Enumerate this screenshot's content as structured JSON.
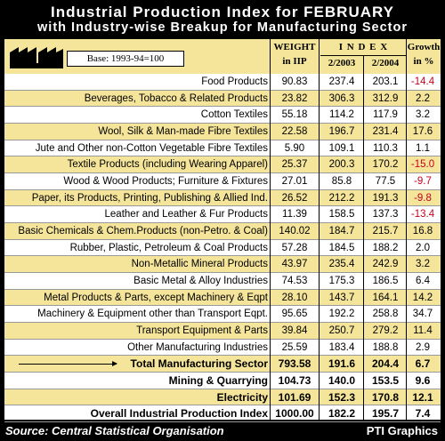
{
  "title_line1": "Industrial Production Index for FEBRUARY",
  "title_line2": "with Industry-wise Breakup for Manufacturing Sector",
  "base_label": "Base: 1993-94=100",
  "headers": {
    "weight_line1": "WEIGHT",
    "weight_line2": "in IIP",
    "index": "I N D E X",
    "year1": "2/2003",
    "year2": "2/2004",
    "growth_line1": "Growth",
    "growth_line2": "in %"
  },
  "chart_data": {
    "type": "table",
    "columns": [
      "Industry",
      "WEIGHT in IIP",
      "2/2003",
      "2/2004",
      "Growth in %"
    ],
    "rows": [
      {
        "name": "Food Products",
        "weight": "90.83",
        "y2003": "237.4",
        "y2004": "203.1",
        "growth": "-14.4"
      },
      {
        "name": "Beverages, Tobacco & Related Products",
        "weight": "23.82",
        "y2003": "306.3",
        "y2004": "312.9",
        "growth": "2.2"
      },
      {
        "name": "Cotton Textiles",
        "weight": "55.18",
        "y2003": "114.2",
        "y2004": "117.9",
        "growth": "3.2"
      },
      {
        "name": "Wool, Silk & Man-made Fibre Textiles",
        "weight": "22.58",
        "y2003": "196.7",
        "y2004": "231.4",
        "growth": "17.6"
      },
      {
        "name": "Jute and Other non-Cotton Vegetable Fibre Textiles",
        "weight": "5.90",
        "y2003": "109.1",
        "y2004": "110.3",
        "growth": "1.1"
      },
      {
        "name": "Textile Products (including Wearing Apparel)",
        "weight": "25.37",
        "y2003": "200.3",
        "y2004": "170.2",
        "growth": "-15.0"
      },
      {
        "name": "Wood & Wood Products; Furniture & Fixtures",
        "weight": "27.01",
        "y2003": "85.8",
        "y2004": "77.5",
        "growth": "-9.7"
      },
      {
        "name": "Paper, its Products, Printing, Publishing & Allied Ind.",
        "weight": "26.52",
        "y2003": "212.2",
        "y2004": "191.3",
        "growth": "-9.8"
      },
      {
        "name": "Leather and Leather & Fur Products",
        "weight": "11.39",
        "y2003": "158.5",
        "y2004": "137.3",
        "growth": "-13.4"
      },
      {
        "name": "Basic Chemicals & Chem.Products (non-Petro. & Coal)",
        "weight": "140.02",
        "y2003": "184.7",
        "y2004": "215.7",
        "growth": "16.8"
      },
      {
        "name": "Rubber, Plastic, Petroleum & Coal Products",
        "weight": "57.28",
        "y2003": "184.5",
        "y2004": "188.2",
        "growth": "2.0"
      },
      {
        "name": "Non-Metallic Mineral Products",
        "weight": "43.97",
        "y2003": "235.4",
        "y2004": "242.9",
        "growth": "3.2"
      },
      {
        "name": "Basic Metal & Alloy Industries",
        "weight": "74.53",
        "y2003": "175.3",
        "y2004": "186.5",
        "growth": "6.4"
      },
      {
        "name": "Metal Products & Parts, except Machinery & Eqpt",
        "weight": "28.10",
        "y2003": "143.7",
        "y2004": "164.1",
        "growth": "14.2"
      },
      {
        "name": "Machinery & Equipment other than Transport Eqpt.",
        "weight": "95.65",
        "y2003": "192.2",
        "y2004": "258.8",
        "growth": "34.7"
      },
      {
        "name": "Transport Equipment & Parts",
        "weight": "39.84",
        "y2003": "250.7",
        "y2004": "279.2",
        "growth": "11.4"
      },
      {
        "name": "Other Manufacturing Industries",
        "weight": "25.59",
        "y2003": "183.4",
        "y2004": "188.8",
        "growth": "2.9"
      },
      {
        "name": "Total Manufacturing Sector",
        "weight": "793.58",
        "y2003": "191.6",
        "y2004": "204.4",
        "growth": "6.7",
        "total": true,
        "arrow": true
      },
      {
        "name": "Mining & Quarrying",
        "weight": "104.73",
        "y2003": "140.0",
        "y2004": "153.5",
        "growth": "9.6",
        "total": true
      },
      {
        "name": "Electricity",
        "weight": "101.69",
        "y2003": "152.3",
        "y2004": "170.8",
        "growth": "12.1",
        "total": true
      },
      {
        "name": "Overall Industrial Production Index",
        "weight": "1000.00",
        "y2003": "182.2",
        "y2004": "195.7",
        "growth": "7.4",
        "total": true
      }
    ]
  },
  "source_text": "Source: Central Statistical Organisation",
  "credit_text": "PTI Graphics",
  "colors": {
    "background": "#000000",
    "row_highlight": "#f5e59a",
    "negative": "#c8001e"
  }
}
